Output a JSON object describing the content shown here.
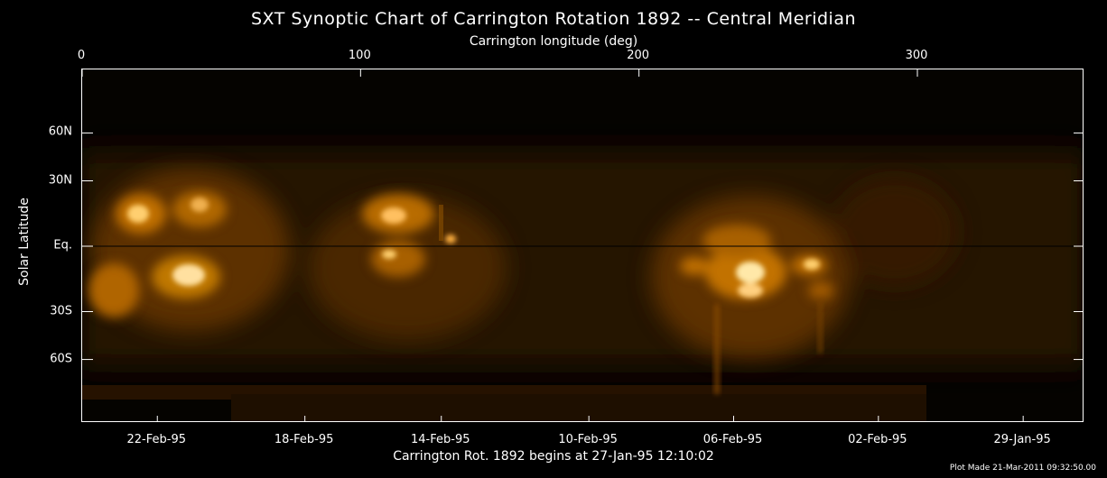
{
  "title": "SXT Synoptic Chart of Carrington Rotation 1892 -- Central Meridian",
  "top_axis": {
    "title": "Carrington longitude (deg)",
    "ticks": [
      {
        "label": "0",
        "value": 0
      },
      {
        "label": "100",
        "value": 100
      },
      {
        "label": "200",
        "value": 200
      },
      {
        "label": "300",
        "value": 300
      }
    ],
    "range": [
      0,
      360
    ]
  },
  "bottom_axis": {
    "title": "Carrington Rot. 1892 begins at 27-Jan-95 12:10:02",
    "ticks": [
      {
        "label": "22-Feb-95",
        "value": 27
      },
      {
        "label": "18-Feb-95",
        "value": 80
      },
      {
        "label": "14-Feb-95",
        "value": 129
      },
      {
        "label": "10-Feb-95",
        "value": 182
      },
      {
        "label": "06-Feb-95",
        "value": 234
      },
      {
        "label": "02-Feb-95",
        "value": 286
      },
      {
        "label": "29-Jan-95",
        "value": 338
      }
    ]
  },
  "y_axis": {
    "title": "Solar Latitude",
    "ticks": [
      {
        "label": "60N",
        "value": 60
      },
      {
        "label": "30N",
        "value": 30
      },
      {
        "label": "Eq.",
        "value": 0
      },
      {
        "label": "30S",
        "value": -30
      },
      {
        "label": "60S",
        "value": -60
      }
    ]
  },
  "footer": "Plot Made 21-Mar-2011 09:32:50.00",
  "colors": {
    "background": "#000000",
    "emission_dim": "#3a2000",
    "emission_mid": "#a05a00",
    "emission_bright": "#ffd98a"
  }
}
